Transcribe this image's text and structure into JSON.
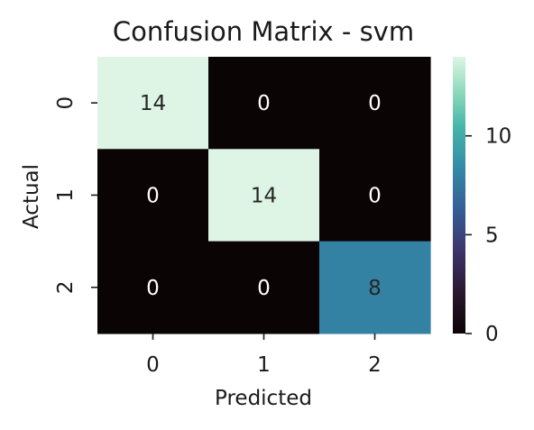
{
  "chart_data": {
    "type": "heatmap",
    "title": "Confusion Matrix - svm",
    "xlabel": "Predicted",
    "ylabel": "Actual",
    "x_tick_labels": [
      "0",
      "1",
      "2"
    ],
    "y_tick_labels": [
      "0",
      "1",
      "2"
    ],
    "matrix": [
      [
        14,
        0,
        0
      ],
      [
        0,
        14,
        0
      ],
      [
        0,
        0,
        8
      ]
    ],
    "cell_labels": [
      [
        "14",
        "0",
        "0"
      ],
      [
        "0",
        "14",
        "0"
      ],
      [
        "0",
        "0",
        "8"
      ]
    ],
    "colormap": "mako",
    "vmin": 0,
    "vmax": 14,
    "colorbar_ticks": [
      0,
      5,
      10
    ],
    "colorbar_tick_labels": [
      "0",
      "5",
      "10"
    ],
    "grid": false
  }
}
